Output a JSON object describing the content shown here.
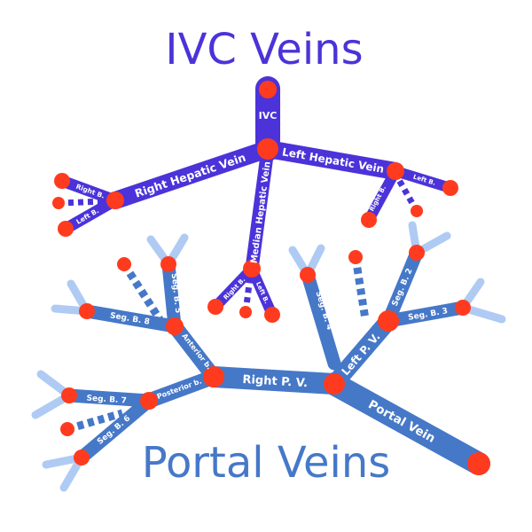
{
  "titles": {
    "ivc": "IVC Veins",
    "portal": "Portal Veins"
  },
  "labels": {
    "ivc": "IVC",
    "right_hepatic_vein": "Right Hepatic Vein",
    "left_hepatic_vein": "Left Hepatic Vein",
    "median_hepatic_vein": "Median Hepatic Vein",
    "rhv_right_b": "Right B.",
    "rhv_left_b": "Left B.",
    "mhv_right_b": "Right B.",
    "mhv_left_b": "Left B.",
    "lhv_right_b": "Right B.",
    "lhv_left_b": "Left B.",
    "right_pv": "Right P. V.",
    "left_pv": "Left P. V.",
    "portal_vein": "Portal Vein",
    "anterior_b": "Anterior b.",
    "posterior_b": "Posterior b.",
    "seg_b2": "Seg. B. 2",
    "seg_b3": "Seg. B. 3",
    "seg_b4": "Seg. B. 4",
    "seg_b5": "Seg. B. 5",
    "seg_b6": "Seg. B. 6",
    "seg_b7": "Seg. B. 7",
    "seg_b8": "Seg. B. 8"
  },
  "colors": {
    "ivc_vessel": "#4B33D9",
    "ivc_title": "#4B33D9",
    "portal_vessel": "#4678C8",
    "portal_title": "#4678C8",
    "terminal_twig": "#AFCBF4",
    "node": "#FF3B1F",
    "label_text": "#FFFFFF"
  }
}
